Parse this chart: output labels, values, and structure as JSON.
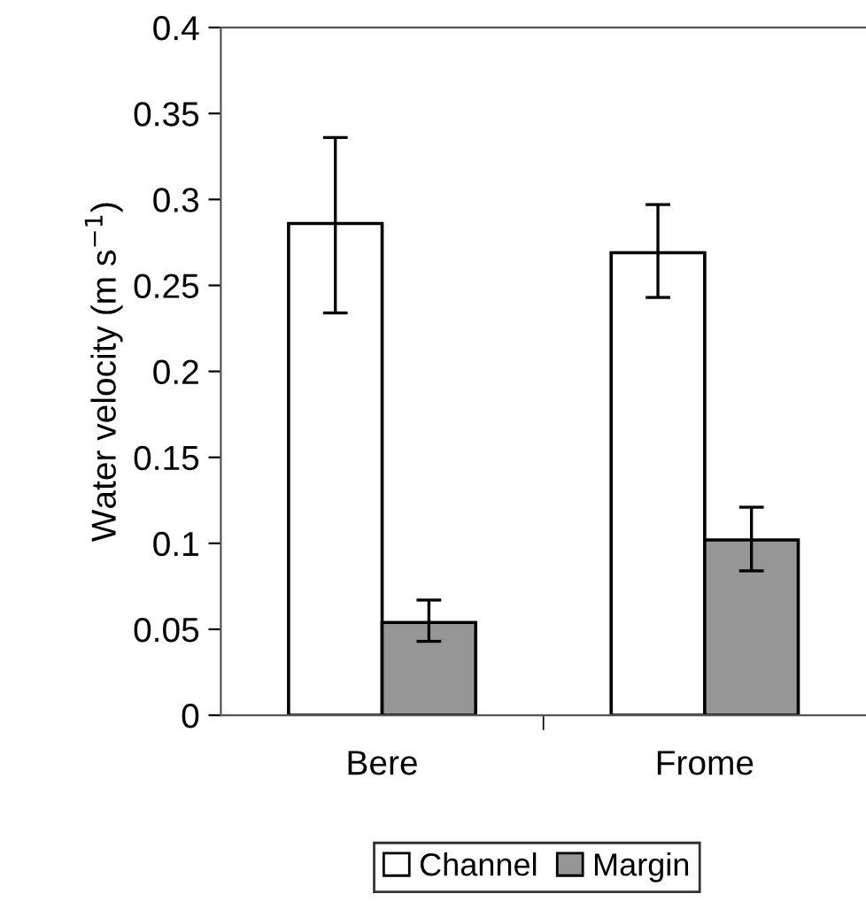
{
  "chart_data": {
    "type": "bar",
    "ylabel": "Water velocity (m s$^{−1}$)",
    "categories": [
      "Bere",
      "Frome"
    ],
    "series": [
      {
        "name": "Channel",
        "color": "#ffffff",
        "values": [
          0.286,
          0.269
        ],
        "errors": [
          [
            0.234,
            0.336
          ],
          [
            0.243,
            0.297
          ]
        ]
      },
      {
        "name": "Margin",
        "color": "#969696",
        "values": [
          0.054,
          0.102
        ],
        "errors": [
          [
            0.043,
            0.067
          ],
          [
            0.084,
            0.121
          ]
        ]
      }
    ],
    "ylim": [
      0,
      0.4
    ],
    "yticks": [
      0,
      0.05,
      0.1,
      0.15,
      0.2,
      0.25,
      0.3,
      0.35,
      0.4
    ],
    "grid": false,
    "legend": "bottom"
  }
}
